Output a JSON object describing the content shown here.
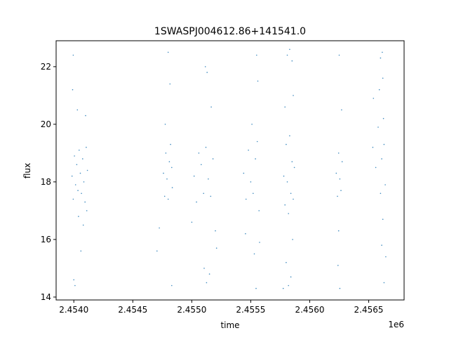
{
  "chart_data": {
    "type": "scatter",
    "title": "1SWASPJ004612.86+141541.0",
    "xlabel": "time",
    "ylabel": "flux",
    "x_offset_label": "1e6",
    "xlim": [
      2453850,
      2456800
    ],
    "ylim": [
      13.9,
      22.9
    ],
    "x_ticks": [
      2453950,
      2454200,
      2454450,
      2454700,
      2454950,
      2455200,
      2455450,
      2455700,
      2455950,
      2456200,
      2456450
    ],
    "x_tick_labels": [
      "2.4540",
      "2.4545",
      "2.4550",
      "2.4555",
      "2.4560",
      "2.4565"
    ],
    "x_tick_values": [
      2454000,
      2454500,
      2455000,
      2455500,
      2456000,
      2456500
    ],
    "y_tick_values": [
      14,
      16,
      18,
      20,
      22
    ],
    "y_tick_labels": [
      "14",
      "16",
      "18",
      "20",
      "22"
    ],
    "grid": false,
    "marker_color": "#1f77b4",
    "series": [
      {
        "points": [
          [
            2453985,
            18.2
          ],
          [
            2453995,
            17.4
          ],
          [
            2454005,
            18.9
          ],
          [
            2454015,
            17.9
          ],
          [
            2454025,
            18.6
          ],
          [
            2454035,
            17.7
          ],
          [
            2454045,
            19.1
          ],
          [
            2454055,
            18.3
          ],
          [
            2454065,
            17.6
          ],
          [
            2454075,
            18.8
          ],
          [
            2454085,
            18.0
          ],
          [
            2454095,
            17.3
          ],
          [
            2454105,
            19.2
          ],
          [
            2454115,
            18.4
          ],
          [
            2453990,
            21.2
          ],
          [
            2453995,
            22.4
          ],
          [
            2454000,
            14.6
          ],
          [
            2454010,
            14.4
          ],
          [
            2454030,
            20.5
          ],
          [
            2454060,
            15.6
          ],
          [
            2454100,
            20.3
          ],
          [
            2454080,
            16.5
          ],
          [
            2454040,
            16.8
          ],
          [
            2454110,
            17.0
          ],
          [
            2454760,
            18.3
          ],
          [
            2454770,
            17.5
          ],
          [
            2454780,
            19.0
          ],
          [
            2454790,
            18.1
          ],
          [
            2454800,
            17.4
          ],
          [
            2454810,
            18.7
          ],
          [
            2454820,
            19.3
          ],
          [
            2454830,
            18.5
          ],
          [
            2454835,
            17.8
          ],
          [
            2454800,
            22.5
          ],
          [
            2454815,
            21.4
          ],
          [
            2454830,
            14.4
          ],
          [
            2454725,
            16.4
          ],
          [
            2454705,
            15.6
          ],
          [
            2454775,
            20.0
          ],
          [
            2455020,
            18.2
          ],
          [
            2455040,
            17.3
          ],
          [
            2455060,
            19.0
          ],
          [
            2455080,
            18.6
          ],
          [
            2455100,
            17.6
          ],
          [
            2455120,
            19.2
          ],
          [
            2455140,
            18.1
          ],
          [
            2455160,
            17.5
          ],
          [
            2455180,
            18.8
          ],
          [
            2455130,
            21.8
          ],
          [
            2455115,
            22.0
          ],
          [
            2455105,
            15.0
          ],
          [
            2455125,
            14.5
          ],
          [
            2455165,
            20.6
          ],
          [
            2455200,
            16.3
          ],
          [
            2455210,
            15.7
          ],
          [
            2455000,
            16.6
          ],
          [
            2455150,
            14.8
          ],
          [
            2455440,
            18.3
          ],
          [
            2455460,
            17.4
          ],
          [
            2455480,
            19.1
          ],
          [
            2455500,
            18.0
          ],
          [
            2455520,
            17.6
          ],
          [
            2455540,
            18.8
          ],
          [
            2455555,
            19.4
          ],
          [
            2455550,
            22.4
          ],
          [
            2455560,
            21.5
          ],
          [
            2455545,
            14.3
          ],
          [
            2455510,
            20.0
          ],
          [
            2455530,
            15.5
          ],
          [
            2455455,
            16.2
          ],
          [
            2455570,
            17.0
          ],
          [
            2455575,
            15.9
          ],
          [
            2455780,
            18.2
          ],
          [
            2455790,
            17.2
          ],
          [
            2455800,
            19.3
          ],
          [
            2455810,
            18.0
          ],
          [
            2455820,
            16.9
          ],
          [
            2455830,
            19.6
          ],
          [
            2455840,
            17.6
          ],
          [
            2455850,
            18.7
          ],
          [
            2455860,
            17.4
          ],
          [
            2455870,
            18.5
          ],
          [
            2455810,
            22.4
          ],
          [
            2455830,
            22.6
          ],
          [
            2455850,
            22.2
          ],
          [
            2455820,
            14.4
          ],
          [
            2455800,
            15.2
          ],
          [
            2455840,
            14.7
          ],
          [
            2455860,
            21.0
          ],
          [
            2455790,
            20.6
          ],
          [
            2455855,
            16.0
          ],
          [
            2455775,
            14.3
          ],
          [
            2456225,
            18.3
          ],
          [
            2456235,
            17.5
          ],
          [
            2456245,
            19.0
          ],
          [
            2456255,
            18.1
          ],
          [
            2456265,
            17.7
          ],
          [
            2456275,
            18.7
          ],
          [
            2456250,
            22.4
          ],
          [
            2456255,
            14.3
          ],
          [
            2456240,
            15.1
          ],
          [
            2456270,
            20.5
          ],
          [
            2456245,
            16.3
          ],
          [
            2456560,
            18.5
          ],
          [
            2456580,
            19.9
          ],
          [
            2456600,
            17.6
          ],
          [
            2456610,
            18.8
          ],
          [
            2456620,
            16.7
          ],
          [
            2456630,
            19.3
          ],
          [
            2456640,
            17.9
          ],
          [
            2456615,
            22.5
          ],
          [
            2456620,
            21.6
          ],
          [
            2456625,
            20.2
          ],
          [
            2456590,
            21.2
          ],
          [
            2456540,
            20.9
          ],
          [
            2456535,
            19.2
          ],
          [
            2456610,
            15.8
          ],
          [
            2456630,
            14.5
          ],
          [
            2456645,
            15.4
          ],
          [
            2456600,
            22.3
          ]
        ]
      }
    ]
  }
}
